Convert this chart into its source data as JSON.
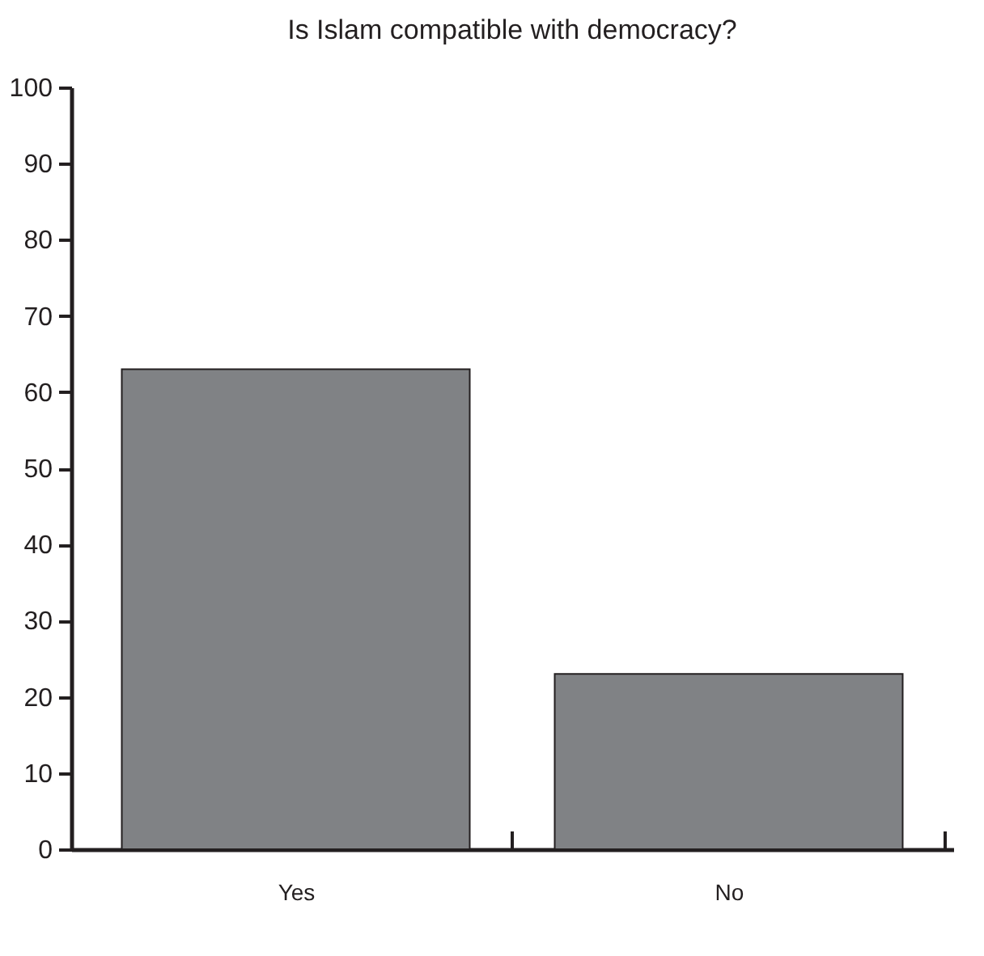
{
  "chart_data": {
    "type": "bar",
    "title": "Is Islam compatible with democracy?",
    "categories": [
      "Yes",
      "No"
    ],
    "values": [
      63,
      23
    ],
    "color": "#808285",
    "ylim": [
      0,
      100
    ],
    "yticks": [
      0,
      10,
      20,
      30,
      40,
      50,
      60,
      70,
      80,
      90,
      100
    ],
    "grid": false
  }
}
